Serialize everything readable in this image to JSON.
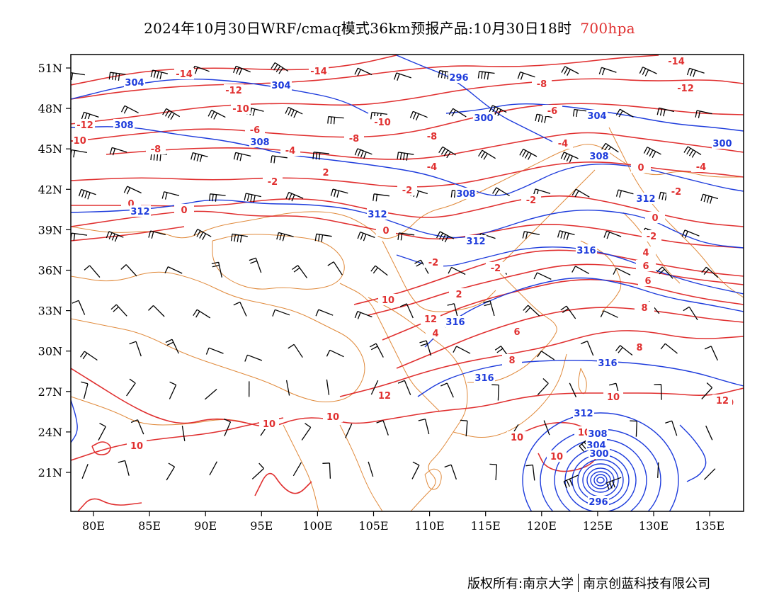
{
  "title": {
    "main": "2024年10月30日WRF/cmaq模式36km预报产品:10月30日18时",
    "level": "700hpa",
    "level_color": "#e03030"
  },
  "axes": {
    "y_ticks": [
      "51N",
      "48N",
      "45N",
      "42N",
      "39N",
      "36N",
      "33N",
      "30N",
      "27N",
      "24N",
      "21N"
    ],
    "x_ticks": [
      "80E",
      "85E",
      "90E",
      "95E",
      "100E",
      "105E",
      "110E",
      "115E",
      "120E",
      "125E",
      "130E",
      "135E"
    ]
  },
  "colors": {
    "temperature_contour": "#e03030",
    "height_contour": "#1e3cdc",
    "border": "#e08a3c",
    "wind_barb": "#000000"
  },
  "temperature_labels": [
    "-14",
    "-14",
    "-14",
    "-12",
    "-12",
    "-12",
    "-10",
    "-10",
    "-10",
    "-8",
    "-8",
    "-8",
    "-8",
    "-6",
    "-6",
    "-4",
    "-4",
    "-4",
    "-4",
    "-2",
    "-2",
    "-2",
    "-2",
    "-2",
    "-2",
    "0",
    "0",
    "0",
    "0",
    "0",
    "-2",
    "2",
    "2",
    "4",
    "4",
    "6",
    "6",
    "6",
    "8",
    "8",
    "8",
    "10",
    "10",
    "10",
    "10",
    "10",
    "10",
    "10",
    "10",
    "10",
    "12",
    "12",
    "12",
    "2"
  ],
  "height_labels": [
    "304",
    "304",
    "296",
    "300",
    "304",
    "300",
    "308",
    "308",
    "308",
    "308",
    "312",
    "312",
    "312",
    "312",
    "316",
    "316",
    "316",
    "316",
    "312",
    "308",
    "304",
    "300",
    "296"
  ],
  "footer": {
    "left": "版权所有:南京大学",
    "right": "南京创蓝科技有限公司"
  }
}
